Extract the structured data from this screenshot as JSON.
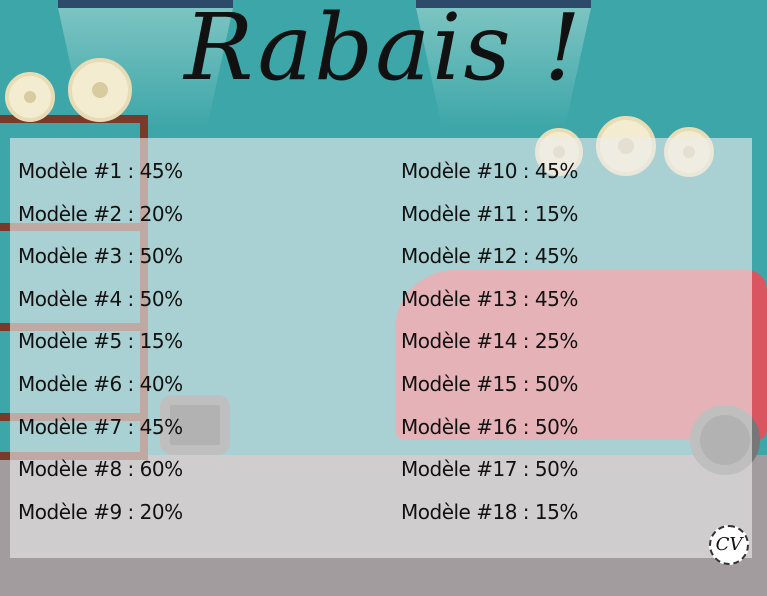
{
  "title": "Rabais !",
  "discounts_left": [
    {
      "label": "Modèle #1 : 45%"
    },
    {
      "label": "Modèle #2 : 20%"
    },
    {
      "label": "Modèle #3 : 50%"
    },
    {
      "label": "Modèle #4 : 50%"
    },
    {
      "label": "Modèle #5 : 15%"
    },
    {
      "label": "Modèle #6 : 40%"
    },
    {
      "label": "Modèle #7 : 45%"
    },
    {
      "label": "Modèle #8 : 60%"
    },
    {
      "label": "Modèle #9 : 20%"
    }
  ],
  "discounts_right": [
    {
      "label": "Modèle #10 : 45%"
    },
    {
      "label": "Modèle #11 : 15%"
    },
    {
      "label": "Modèle #12 : 45%"
    },
    {
      "label": "Modèle #13 : 45%"
    },
    {
      "label": "Modèle #14 : 25%"
    },
    {
      "label": "Modèle #15 : 50%"
    },
    {
      "label": "Modèle #16 : 50%"
    },
    {
      "label": "Modèle #17 : 50%"
    },
    {
      "label": "Modèle #18 : 15%"
    }
  ],
  "logo": "CV",
  "colors": {
    "wall": "#3da6a8",
    "floor": "#a29c9f",
    "car": "#d9555f"
  }
}
